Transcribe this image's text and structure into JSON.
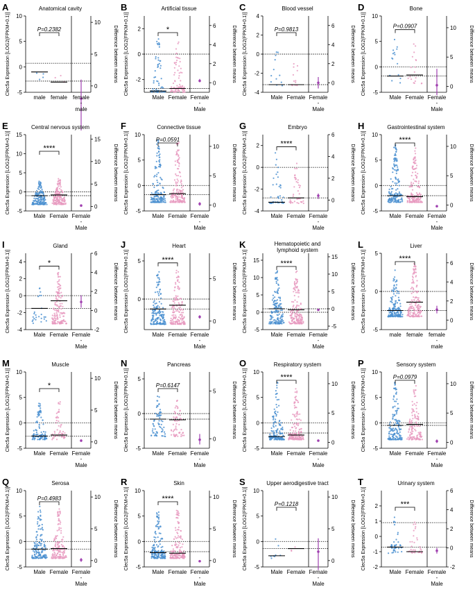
{
  "colors": {
    "male": "#4a8fd0",
    "female": "#e89ac0",
    "diff": "#a040b0"
  },
  "labels": {
    "y_left": "Clec5a Expression [LOG2(FPKM+0.1)]",
    "y_right": "Difference between means"
  },
  "chart_data": [
    {
      "panel": "A",
      "type": "scatter",
      "title": "Anatomical cavity",
      "title2": "",
      "categories": [
        "male",
        "female",
        "female",
        "-",
        "male"
      ],
      "ylim": [
        -5,
        10
      ],
      "yticks": [
        -5,
        0,
        5,
        10
      ],
      "rlim": [
        -1,
        11
      ],
      "rticks": [
        0,
        5,
        10
      ],
      "sig": "P=0.2382",
      "male_n": 4,
      "female_n": 3,
      "male_mean": -1.0,
      "female_mean": -3.0,
      "male_range": [
        -3.2,
        4.0
      ],
      "female_range": [
        -3.2,
        -1.0
      ],
      "diff": -2.0,
      "diff_ci": [
        -7.0,
        1.0
      ],
      "ref_lines": [
        0.7,
        -2.8
      ]
    },
    {
      "panel": "B",
      "type": "scatter",
      "title": "Artificial tissue",
      "title2": "",
      "categories": [
        "Male",
        "Female",
        "Female",
        "-",
        "Male"
      ],
      "ylim": [
        -3,
        3
      ],
      "yticks": [
        -2,
        0,
        2
      ],
      "rlim": [
        -1,
        7
      ],
      "rticks": [
        0,
        2,
        4,
        6
      ],
      "sig": "*",
      "male_n": 60,
      "female_n": 80,
      "male_mean": -2.9,
      "female_mean": -2.7,
      "male_range": [
        -3.0,
        1.2
      ],
      "female_range": [
        -3.0,
        1.0
      ],
      "diff": 0.2,
      "diff_ci": [
        0.05,
        0.4
      ],
      "ref_lines": [
        0.0,
        -2.7
      ]
    },
    {
      "panel": "C",
      "type": "scatter",
      "title": "Blood vessel",
      "title2": "",
      "categories": [
        "Male",
        "Female",
        "Female",
        "-",
        "Male"
      ],
      "ylim": [
        -4,
        4
      ],
      "yticks": [
        -4,
        -2,
        0,
        2,
        4
      ],
      "rlim": [
        -1,
        7
      ],
      "rticks": [
        0,
        2,
        4,
        6
      ],
      "sig": "P=0.9813",
      "male_n": 12,
      "female_n": 12,
      "male_mean": -3.2,
      "female_mean": -3.2,
      "male_range": [
        -3.3,
        0.5
      ],
      "female_range": [
        -3.3,
        0.0
      ],
      "diff": 0.0,
      "diff_ci": [
        -0.6,
        0.6
      ],
      "ref_lines": [
        0.0,
        -3.2
      ]
    },
    {
      "panel": "D",
      "type": "scatter",
      "title": "Bone",
      "title2": "",
      "categories": [
        "Male",
        "Female",
        "Female",
        "-",
        "Male"
      ],
      "ylim": [
        -5,
        10
      ],
      "yticks": [
        -5,
        0,
        5,
        10
      ],
      "rlim": [
        -1,
        12
      ],
      "rticks": [
        0,
        5,
        10
      ],
      "sig": "P=0.0907",
      "male_n": 15,
      "female_n": 18,
      "male_mean": -1.8,
      "female_mean": -1.6,
      "male_range": [
        -3.3,
        6.5
      ],
      "female_range": [
        -3.3,
        5.0
      ],
      "diff": 0.2,
      "diff_ci": [
        -1.5,
        3.0
      ],
      "ref_lines": [
        0.0,
        -1.8
      ]
    },
    {
      "panel": "E",
      "type": "scatter",
      "title": "Central nervous system",
      "title2": "",
      "categories": [
        "Male",
        "Female",
        "Female",
        "-",
        "Male"
      ],
      "ylim": [
        -5,
        15
      ],
      "yticks": [
        -5,
        0,
        5,
        10,
        15
      ],
      "rlim": [
        -1,
        16
      ],
      "rticks": [
        0,
        5,
        10,
        15
      ],
      "sig": "****",
      "male_n": 700,
      "female_n": 600,
      "male_mean": -1.0,
      "female_mean": -0.8,
      "male_range": [
        -3.3,
        3.0
      ],
      "female_range": [
        -3.3,
        3.5
      ],
      "diff": 0.2,
      "diff_ci": [
        0.1,
        0.3
      ],
      "ref_lines": [
        0.0,
        -1.0
      ]
    },
    {
      "panel": "F",
      "type": "scatter",
      "title": "Connective tissue",
      "title2": "",
      "categories": [
        "Male",
        "Female",
        "Female",
        "-",
        "Male"
      ],
      "ylim": [
        -5,
        10
      ],
      "yticks": [
        -5,
        0,
        5,
        10
      ],
      "rlim": [
        -1,
        12
      ],
      "rticks": [
        0,
        5,
        10
      ],
      "sig": "P=0.0591",
      "male_n": 180,
      "female_n": 160,
      "male_mean": -1.8,
      "female_mean": -1.6,
      "male_range": [
        -3.3,
        9.0
      ],
      "female_range": [
        -3.3,
        8.5
      ],
      "diff": 0.2,
      "diff_ci": [
        -0.1,
        0.5
      ],
      "ref_lines": [
        0.0,
        -1.8
      ]
    },
    {
      "panel": "G",
      "type": "scatter",
      "title": "Embryo",
      "title2": "",
      "categories": [
        "Male",
        "Female",
        "Female",
        "-",
        "Male"
      ],
      "ylim": [
        -4,
        3
      ],
      "yticks": [
        -4,
        -2,
        0,
        2
      ],
      "rlim": [
        -1,
        6
      ],
      "rticks": [
        0,
        2,
        4,
        6
      ],
      "sig": "****",
      "male_n": 40,
      "female_n": 40,
      "male_mean": -3.2,
      "female_mean": -2.8,
      "male_range": [
        -3.3,
        1.5
      ],
      "female_range": [
        -3.3,
        0.5
      ],
      "diff": 0.4,
      "diff_ci": [
        0.1,
        0.6
      ],
      "ref_lines": [
        0.0,
        -2.8
      ]
    },
    {
      "panel": "H",
      "type": "scatter",
      "title": "Gastrointestinal system",
      "title2": "",
      "categories": [
        "Male",
        "Female",
        "Female",
        "-",
        "Male"
      ],
      "ylim": [
        -5,
        10
      ],
      "yticks": [
        -5,
        0,
        5,
        10
      ],
      "rlim": [
        -1,
        12
      ],
      "rticks": [
        0,
        5,
        10
      ],
      "sig": "****",
      "male_n": 400,
      "female_n": 300,
      "male_mean": -2.0,
      "female_mean": -2.2,
      "male_range": [
        -3.3,
        8.0
      ],
      "female_range": [
        -3.3,
        7.5
      ],
      "diff": -0.2,
      "diff_ci": [
        -0.35,
        -0.05
      ],
      "ref_lines": [
        0.0,
        -2.0
      ]
    },
    {
      "panel": "I",
      "type": "scatter",
      "title": "Gland",
      "title2": "",
      "categories": [
        "Male",
        "Female",
        "Female",
        "-",
        "Male"
      ],
      "ylim": [
        -4,
        5
      ],
      "yticks": [
        -4,
        -2,
        0,
        2,
        4
      ],
      "rlim": [
        -2,
        6
      ],
      "rticks": [
        -2,
        0,
        2,
        4,
        6
      ],
      "sig": "*",
      "male_n": 25,
      "female_n": 160,
      "male_mean": -1.5,
      "female_mean": -0.6,
      "male_range": [
        -3.3,
        1.5
      ],
      "female_range": [
        -3.3,
        3.0
      ],
      "diff": 0.9,
      "diff_ci": [
        0.3,
        1.6
      ],
      "ref_lines": [
        0.0,
        -1.5
      ]
    },
    {
      "panel": "J",
      "type": "scatter",
      "title": "Heart",
      "title2": "",
      "categories": [
        "Male",
        "Female",
        "Female",
        "-",
        "Male"
      ],
      "ylim": [
        -4,
        6
      ],
      "yticks": [
        -5,
        0,
        5
      ],
      "rlim": [
        -1,
        8
      ],
      "rticks": [
        0,
        5
      ],
      "sig": "****",
      "male_n": 250,
      "female_n": 220,
      "male_mean": -1.3,
      "female_mean": -0.8,
      "male_range": [
        -3.3,
        4.0
      ],
      "female_range": [
        -3.3,
        4.2
      ],
      "diff": 0.5,
      "diff_ci": [
        0.3,
        0.7
      ],
      "ref_lines": [
        0.0,
        -1.3
      ]
    },
    {
      "panel": "K",
      "type": "scatter",
      "title": "Hematopoietic and",
      "title2": "lymphoid system",
      "categories": [
        "Male",
        "Female",
        "Female",
        "-",
        "Male"
      ],
      "ylim": [
        -5,
        17
      ],
      "yticks": [
        -5,
        0,
        5,
        10,
        15
      ],
      "rlim": [
        -6,
        16
      ],
      "rticks": [
        -5,
        0,
        5,
        10,
        15
      ],
      "sig": "****",
      "male_n": 900,
      "female_n": 800,
      "male_mean": 1.0,
      "female_mean": 0.7,
      "male_range": [
        -3.3,
        12.0
      ],
      "female_range": [
        -3.3,
        12.0
      ],
      "diff": -0.3,
      "diff_ci": [
        -0.4,
        -0.2
      ],
      "ref_lines": [
        0.0,
        1.0
      ]
    },
    {
      "panel": "L",
      "type": "scatter",
      "title": "Liver",
      "title2": "",
      "categories": [
        "male",
        "female",
        "female",
        "-",
        "male"
      ],
      "ylim": [
        -5,
        5
      ],
      "yticks": [
        -5,
        0,
        5
      ],
      "rlim": [
        -1,
        7
      ],
      "rticks": [
        0,
        2,
        4,
        6
      ],
      "sig": "****",
      "male_n": 180,
      "female_n": 200,
      "male_mean": -2.5,
      "female_mean": -1.4,
      "male_range": [
        -3.3,
        3.0
      ],
      "female_range": [
        -3.3,
        4.0
      ],
      "diff": 1.1,
      "diff_ci": [
        0.7,
        1.5
      ],
      "ref_lines": [
        0.0,
        -2.5
      ]
    },
    {
      "panel": "M",
      "type": "scatter",
      "title": "Muscle",
      "title2": "",
      "categories": [
        "Male",
        "Female",
        "Female",
        "-",
        "Male"
      ],
      "ylim": [
        -5,
        10
      ],
      "yticks": [
        -5,
        0,
        5,
        10
      ],
      "rlim": [
        -1,
        11
      ],
      "rticks": [
        0,
        5,
        10
      ],
      "sig": "*",
      "male_n": 100,
      "female_n": 50,
      "male_mean": -2.6,
      "female_mean": -2.4,
      "male_range": [
        -3.3,
        4.0
      ],
      "female_range": [
        -3.3,
        4.5
      ],
      "diff": 0.2,
      "diff_ci": [
        0.0,
        0.4
      ],
      "ref_lines": [
        0.0,
        -2.6
      ]
    },
    {
      "panel": "N",
      "type": "scatter",
      "title": "Pancreas",
      "title2": "",
      "categories": [
        "Male",
        "Female",
        "Female",
        "-",
        "Male"
      ],
      "ylim": [
        -5,
        6
      ],
      "yticks": [
        -5,
        0,
        5
      ],
      "rlim": [
        -1,
        7
      ],
      "rticks": [
        0,
        5
      ],
      "sig": "P=0.6147",
      "male_n": 70,
      "female_n": 60,
      "male_mean": -0.8,
      "female_mean": -0.9,
      "male_range": [
        -3.3,
        2.5
      ],
      "female_range": [
        -3.3,
        2.5
      ],
      "diff": -0.1,
      "diff_ci": [
        -0.6,
        0.5
      ],
      "ref_lines": [
        0.0,
        -0.8
      ]
    },
    {
      "panel": "O",
      "type": "scatter",
      "title": "Respiratory system",
      "title2": "",
      "categories": [
        "Male",
        "Female",
        "Female",
        "-",
        "Male"
      ],
      "ylim": [
        -5,
        10
      ],
      "yticks": [
        -5,
        0,
        5,
        10
      ],
      "rlim": [
        -1,
        12
      ],
      "rticks": [
        0,
        5,
        10
      ],
      "sig": "****",
      "male_n": 300,
      "female_n": 250,
      "male_mean": -2.7,
      "female_mean": -2.4,
      "male_range": [
        -3.3,
        8.0
      ],
      "female_range": [
        -3.3,
        7.0
      ],
      "diff": 0.3,
      "diff_ci": [
        0.1,
        0.5
      ],
      "ref_lines": [
        0.0,
        -2.0
      ]
    },
    {
      "panel": "P",
      "type": "scatter",
      "title": "Sensory system",
      "title2": "",
      "categories": [
        "Male",
        "Female",
        "Female",
        "-",
        "Male"
      ],
      "ylim": [
        -5,
        10
      ],
      "yticks": [
        -5,
        0,
        5,
        10
      ],
      "rlim": [
        -1,
        12
      ],
      "rticks": [
        0,
        5,
        10
      ],
      "sig": "P=0.0979",
      "male_n": 150,
      "female_n": 130,
      "male_mean": -0.5,
      "female_mean": -0.3,
      "male_range": [
        -3.3,
        8.0
      ],
      "female_range": [
        -3.3,
        7.5
      ],
      "diff": 0.2,
      "diff_ci": [
        -0.1,
        0.5
      ],
      "ref_lines": [
        0.0,
        -0.5
      ]
    },
    {
      "panel": "Q",
      "type": "scatter",
      "title": "Serosa",
      "title2": "",
      "categories": [
        "Male",
        "Female",
        "Female",
        "-",
        "Male"
      ],
      "ylim": [
        -5,
        10
      ],
      "yticks": [
        -5,
        0,
        5,
        10
      ],
      "rlim": [
        -1,
        11
      ],
      "rticks": [
        0,
        5,
        10
      ],
      "sig": "P=0.4983",
      "male_n": 150,
      "female_n": 150,
      "male_mean": -1.5,
      "female_mean": -1.4,
      "male_range": [
        -3.3,
        7.0
      ],
      "female_range": [
        -3.3,
        6.5
      ],
      "diff": 0.1,
      "diff_ci": [
        -0.2,
        0.4
      ],
      "ref_lines": [
        0.0,
        -1.5
      ]
    },
    {
      "panel": "R",
      "type": "scatter",
      "title": "Skin",
      "title2": "",
      "categories": [
        "Male",
        "Female",
        "Female",
        "-",
        "Male"
      ],
      "ylim": [
        -5,
        10
      ],
      "yticks": [
        -5,
        0,
        5,
        10
      ],
      "rlim": [
        -1,
        11
      ],
      "rticks": [
        0,
        5,
        10
      ],
      "sig": "****",
      "male_n": 350,
      "female_n": 300,
      "male_mean": -2.2,
      "female_mean": -2.3,
      "male_range": [
        -3.3,
        6.0
      ],
      "female_range": [
        -3.3,
        7.0
      ],
      "diff": -0.1,
      "diff_ci": [
        -0.2,
        0.0
      ],
      "ref_lines": [
        0.0,
        -2.0
      ]
    },
    {
      "panel": "S",
      "type": "scatter",
      "title": "Upper aerodigestive tract",
      "title2": "",
      "categories": [
        "Male",
        "Female",
        "Female",
        "-",
        "Male"
      ],
      "ylim": [
        -5,
        10
      ],
      "yticks": [
        -5,
        0,
        5,
        10
      ],
      "rlim": [
        -1,
        11
      ],
      "rticks": [
        0,
        5,
        10
      ],
      "sig": "P=0.1218",
      "male_n": 8,
      "female_n": 3,
      "male_mean": -2.8,
      "female_mean": -1.4,
      "male_range": [
        -3.3,
        1.0
      ],
      "female_range": [
        -2.0,
        -1.0
      ],
      "diff": 1.4,
      "diff_ci": [
        -1.5,
        3.5
      ],
      "ref_lines": [
        0.0,
        -1.4
      ]
    },
    {
      "panel": "T",
      "type": "scatter",
      "title": "Urinary system",
      "title2": "",
      "categories": [
        "Male",
        "Female",
        "Female",
        "-",
        "Male"
      ],
      "ylim": [
        -2,
        3
      ],
      "yticks": [
        -2,
        -1,
        0,
        1,
        2
      ],
      "rlim": [
        -2,
        6
      ],
      "rticks": [
        -2,
        0,
        2,
        4,
        6
      ],
      "sig": "***",
      "male_n": 40,
      "female_n": 35,
      "male_mean": -0.7,
      "female_mean": -1.0,
      "male_range": [
        -1.1,
        1.5
      ],
      "female_range": [
        -1.1,
        1.0
      ],
      "diff": -0.3,
      "diff_ci": [
        -0.6,
        0.0
      ],
      "ref_lines": [
        0.9,
        -0.7
      ]
    }
  ]
}
